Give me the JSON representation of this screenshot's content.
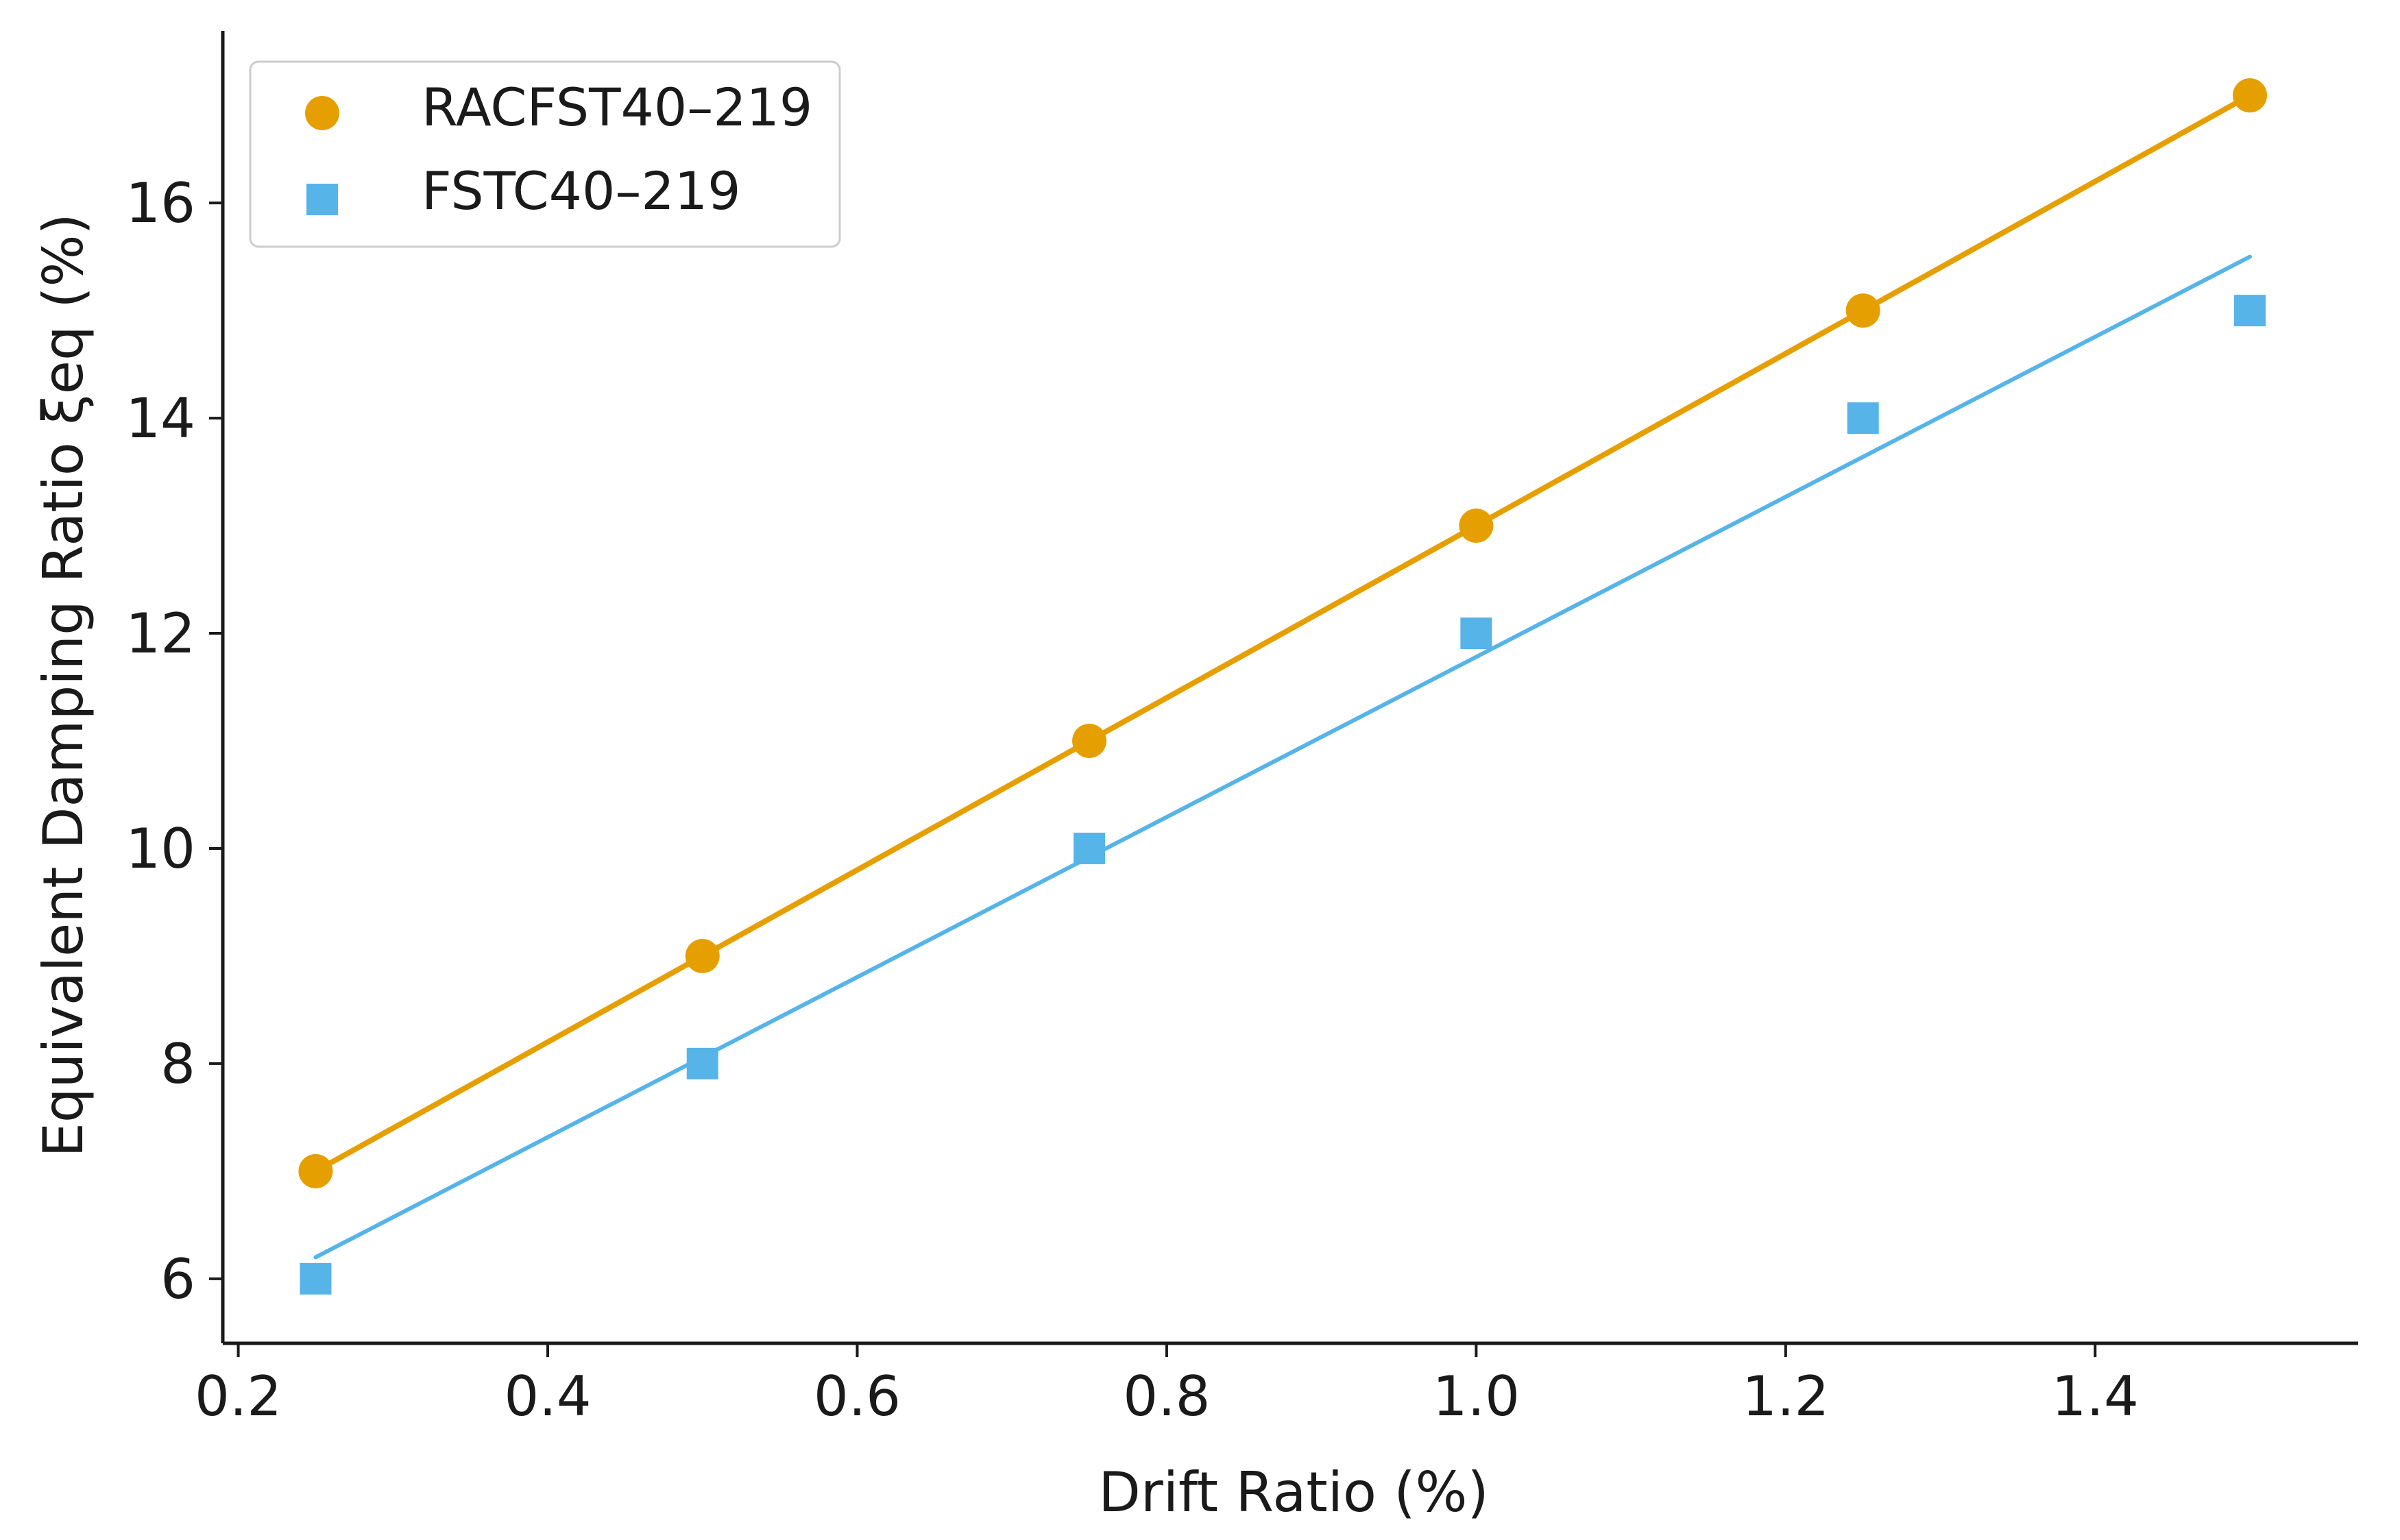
{
  "chart_data": {
    "type": "scatter",
    "title": "",
    "xlabel": "Drift Ratio (%)",
    "ylabel": "Equivalent Damping Ratio ξeq (%)",
    "xlim": [
      0.19,
      1.57
    ],
    "ylim": [
      5.4,
      17.6
    ],
    "xticks": [
      0.2,
      0.4,
      0.6,
      0.8,
      1.0,
      1.2,
      1.4
    ],
    "xtick_labels": [
      "0.2",
      "0.4",
      "0.6",
      "0.8",
      "1.0",
      "1.2",
      "1.4"
    ],
    "yticks": [
      6,
      8,
      10,
      12,
      14,
      16
    ],
    "ytick_labels": [
      "6",
      "8",
      "10",
      "12",
      "14",
      "16"
    ],
    "grid": false,
    "legend_position": "top-left",
    "series": [
      {
        "name": "RACFST40–219",
        "marker": "circle",
        "color": "#E69F00",
        "x": [
          0.25,
          0.5,
          0.75,
          1.0,
          1.25,
          1.5
        ],
        "y": [
          7,
          9,
          11,
          13,
          15,
          17
        ],
        "fit_line": {
          "x": [
            0.25,
            1.5
          ],
          "y": [
            7.0,
            17.0
          ]
        }
      },
      {
        "name": "FSTC40–219",
        "marker": "square",
        "color": "#56B4E9",
        "x": [
          0.25,
          0.5,
          0.75,
          1.0,
          1.25,
          1.5
        ],
        "y": [
          6,
          8,
          10,
          12,
          14,
          15
        ],
        "fit_line": {
          "x": [
            0.25,
            1.5
          ],
          "y": [
            6.2,
            15.5
          ]
        }
      }
    ]
  }
}
